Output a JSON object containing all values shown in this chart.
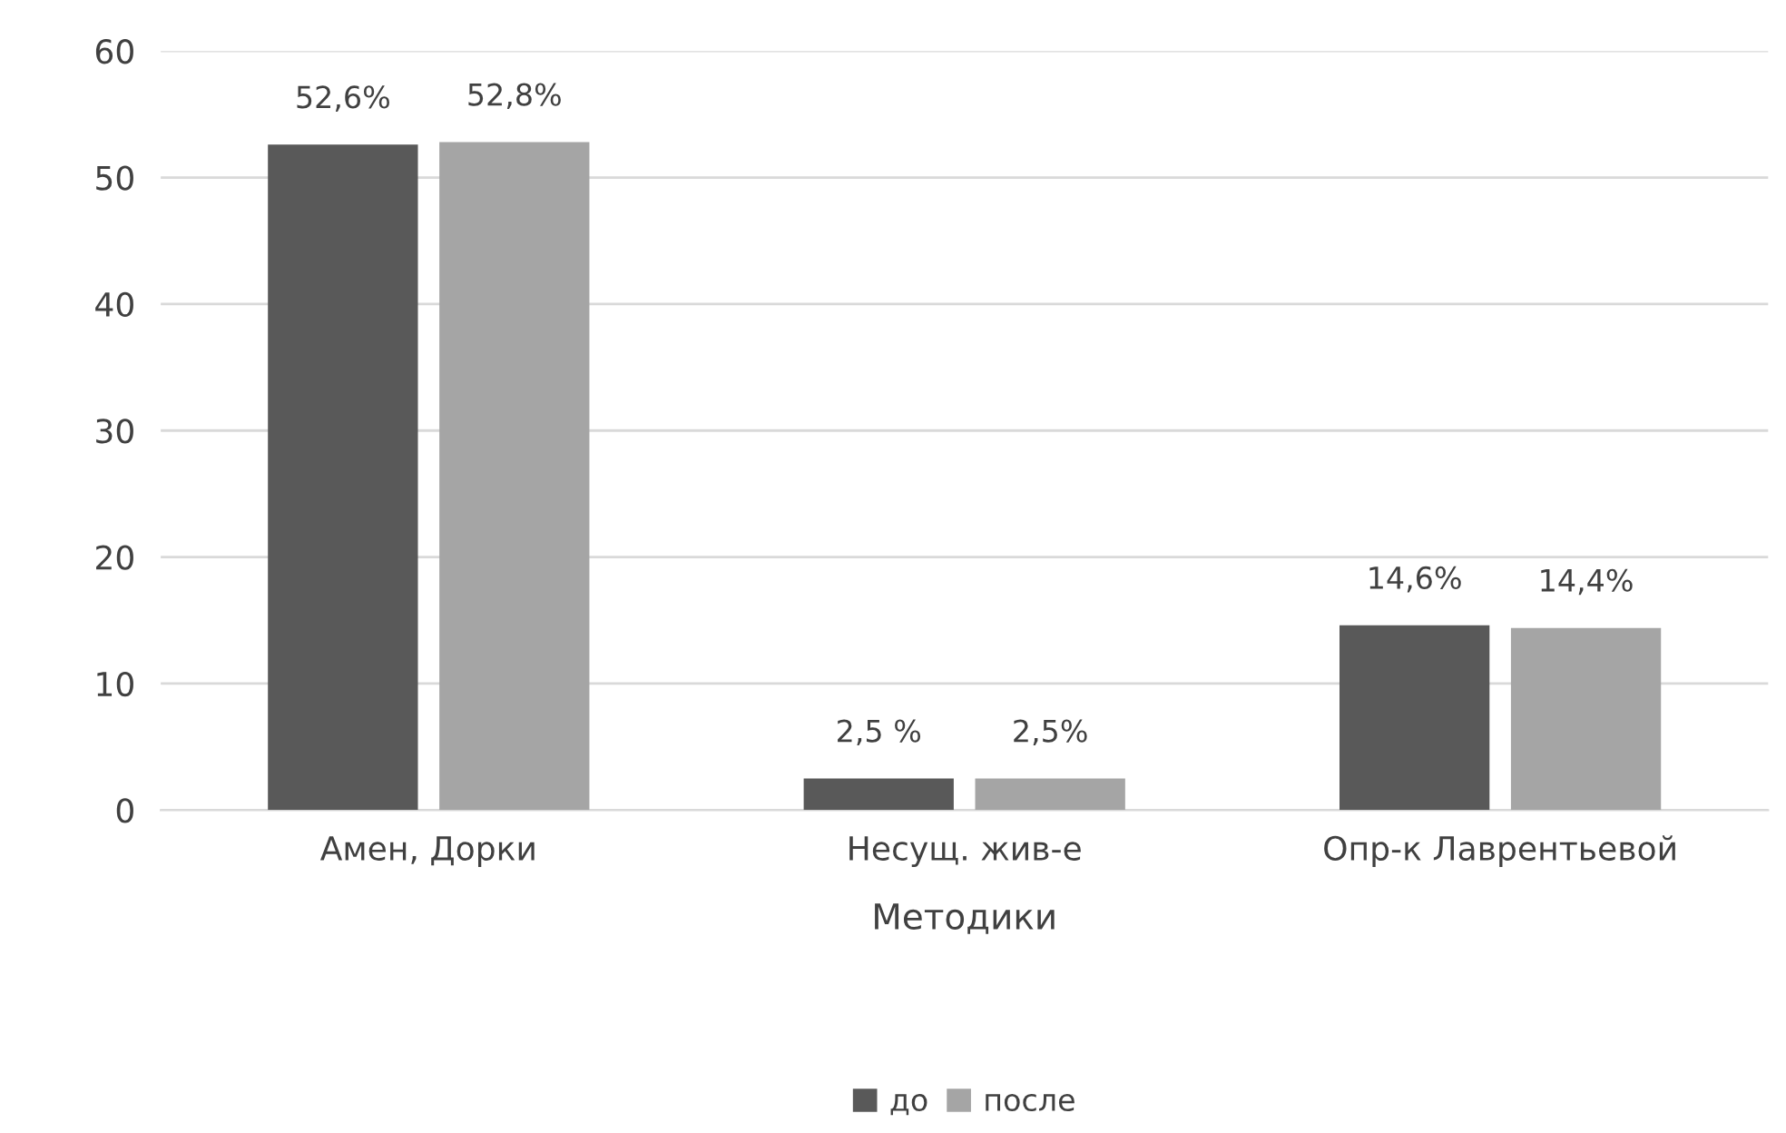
{
  "chart_data": {
    "type": "bar",
    "xlabel": "Методики",
    "categories": [
      "Амен, Дорки",
      "Несущ. жив-е",
      "Опр-к Лаврентьевой"
    ],
    "series": [
      {
        "name": "до",
        "color": "#595959",
        "values": [
          52.6,
          2.5,
          14.6
        ],
        "value_labels": [
          "52,6%",
          "2,5 %",
          "14,6%"
        ]
      },
      {
        "name": "после",
        "color": "#a5a5a5",
        "values": [
          52.8,
          2.5,
          14.4
        ],
        "value_labels": [
          "52,8%",
          "2,5%",
          "14,4%"
        ]
      }
    ],
    "ylim": [
      0,
      60
    ],
    "yticks": [
      0,
      10,
      20,
      30,
      40,
      50,
      60
    ],
    "grid": "y",
    "legend": "bottom"
  }
}
